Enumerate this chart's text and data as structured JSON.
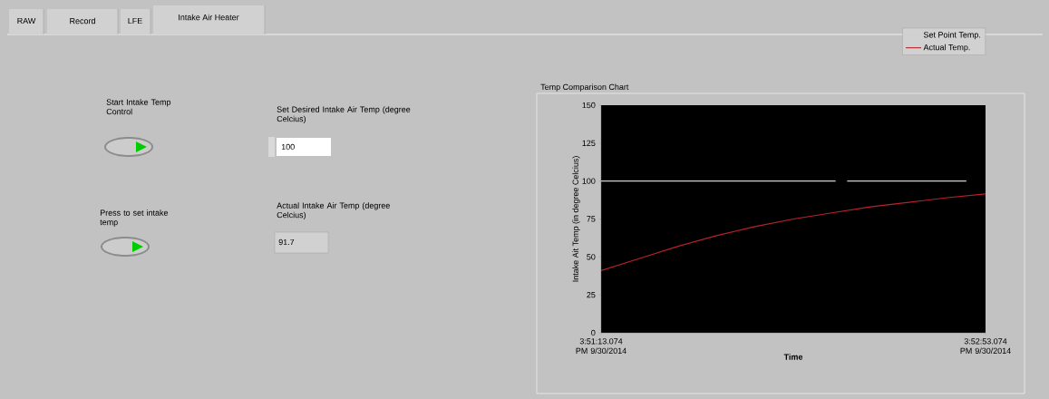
{
  "chart_data": {
    "type": "line",
    "title": "Temp Comparison Chart",
    "xlabel": "Time",
    "ylabel": "Intake Ait Temp (in degree Celcius)",
    "series": [
      {
        "name": "Set Point Temp.",
        "color": "#d0d0d0",
        "x": [
          "2014-09-30T15:51:13.074",
          "2014-09-30T15:52:14.074",
          "2014-09-30T15:52:15.574",
          "2014-09-30T15:52:17.074",
          "2014-09-30T15:52:48.074"
        ],
        "values": [
          100,
          100,
          null,
          100,
          100
        ]
      },
      {
        "name": "Actual Temp.",
        "color": "#b8222c",
        "x": [
          "2014-09-30T15:51:13.074",
          "2014-09-30T15:51:23.074",
          "2014-09-30T15:51:33.074",
          "2014-09-30T15:51:43.074",
          "2014-09-30T15:51:53.074",
          "2014-09-30T15:52:03.074",
          "2014-09-30T15:52:13.074",
          "2014-09-30T15:52:23.074",
          "2014-09-30T15:52:33.074",
          "2014-09-30T15:52:43.074",
          "2014-09-30T15:52:53.074"
        ],
        "values": [
          41,
          49,
          57,
          64,
          70,
          75,
          79,
          83,
          86,
          89,
          91.5
        ]
      }
    ],
    "xlim": [
      "2014-09-30T15:51:13.074",
      "2014-09-30T15:52:53.074"
    ],
    "ylim": [
      0,
      150
    ],
    "xticks": [
      {
        "value": "2014-09-30T15:51:13.074",
        "label": "3:51:13.074 PM 9/30/2014"
      },
      {
        "value": "2014-09-30T15:52:53.074",
        "label": "3:52:53.074 PM 9/30/2014"
      }
    ],
    "yticks": [
      0,
      25,
      50,
      75,
      100,
      125,
      150
    ],
    "legend": "top right",
    "marker": "none",
    "annotations": [
      "RAW",
      "Record",
      "LFE",
      "Intake Air Heater",
      "Start Intake Temp Control",
      "Set Desired Intake Air Temp (degree Celcius)",
      "100",
      "Press to set intake temp",
      "Actual Intake Air Temp (degree Celcius)",
      "91.7"
    ]
  }
}
